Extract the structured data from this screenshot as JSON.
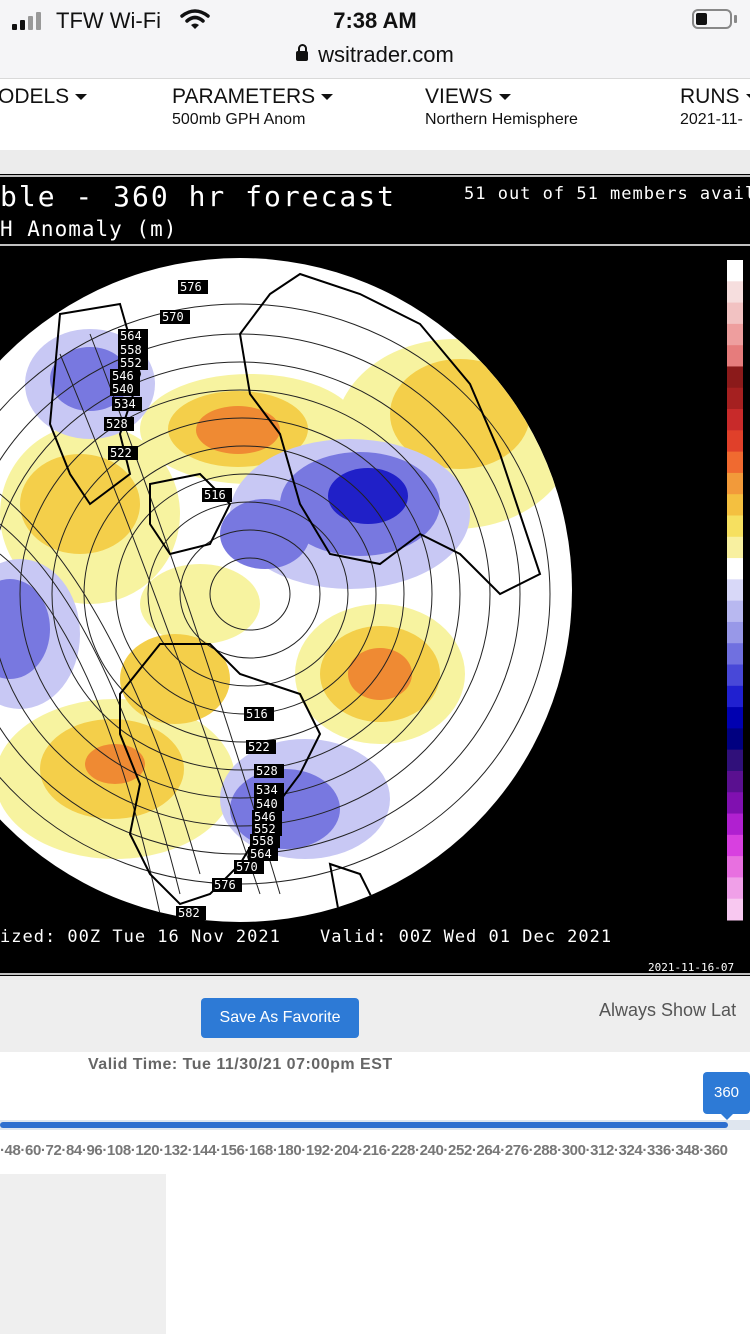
{
  "status_bar": {
    "carrier": "TFW Wi-Fi",
    "time": "7:38 AM",
    "url": "wsitrader.com"
  },
  "nav": {
    "models": {
      "label": "ODELS"
    },
    "parameters": {
      "label": "PARAMETERS",
      "value": "500mb GPH Anom"
    },
    "views": {
      "label": "VIEWS",
      "value": "Northern Hemisphere"
    },
    "runs": {
      "label": "RUNS",
      "value": "2021-11-"
    }
  },
  "map": {
    "title": "ble - 360 hr forecast",
    "subtitle": "H Anomaly (m)",
    "members": "51 out of 51 members avail",
    "initialized": "ized: 00Z Tue 16 Nov 2021",
    "valid": "Valid: 00Z Wed 01 Dec 2021",
    "stamp": "2021-11-16-07",
    "contour_labels": [
      "576",
      "570",
      "564",
      "558",
      "552",
      "546",
      "540",
      "534",
      "528",
      "522",
      "516",
      "516",
      "522",
      "528",
      "534",
      "540",
      "546",
      "552",
      "558",
      "564",
      "570",
      "576",
      "582"
    ],
    "colors": {
      "warm_light": "#f7f3a0",
      "warm_mid": "#f4cf4a",
      "warm_strong": "#ef8a33",
      "cool_light": "#c8c8f4",
      "cool_mid": "#7878e0",
      "cool_strong": "#2020c8"
    },
    "colorbar": [
      "#ffffff",
      "#f6dede",
      "#f2c2c2",
      "#ee9e9e",
      "#e67c7c",
      "#8b1a1a",
      "#a52020",
      "#c82a2a",
      "#e0402a",
      "#f06a30",
      "#f29a3a",
      "#f4c040",
      "#f6e060",
      "#f8f0a0",
      "#ffffff",
      "#d8d8f8",
      "#b8b8f0",
      "#9898e8",
      "#7070e0",
      "#4848d8",
      "#2020d0",
      "#0000b0",
      "#000080",
      "#30107a",
      "#5a1090",
      "#8010b0",
      "#b020d0",
      "#d840e0",
      "#e870e0",
      "#f0a0e8",
      "#f8c8f0"
    ]
  },
  "controls": {
    "favorite_button": "Save As Favorite",
    "always_show": "Always Show Lat"
  },
  "timeline": {
    "valid_time": "Valid Time: Tue 11/30/21 07:00pm EST",
    "handle": "360",
    "ticks": "6·48·60·72·84·96·108·120·132·144·156·168·180·192·204·216·228·240·252·264·276·288·300·312·324·336·348·360"
  }
}
